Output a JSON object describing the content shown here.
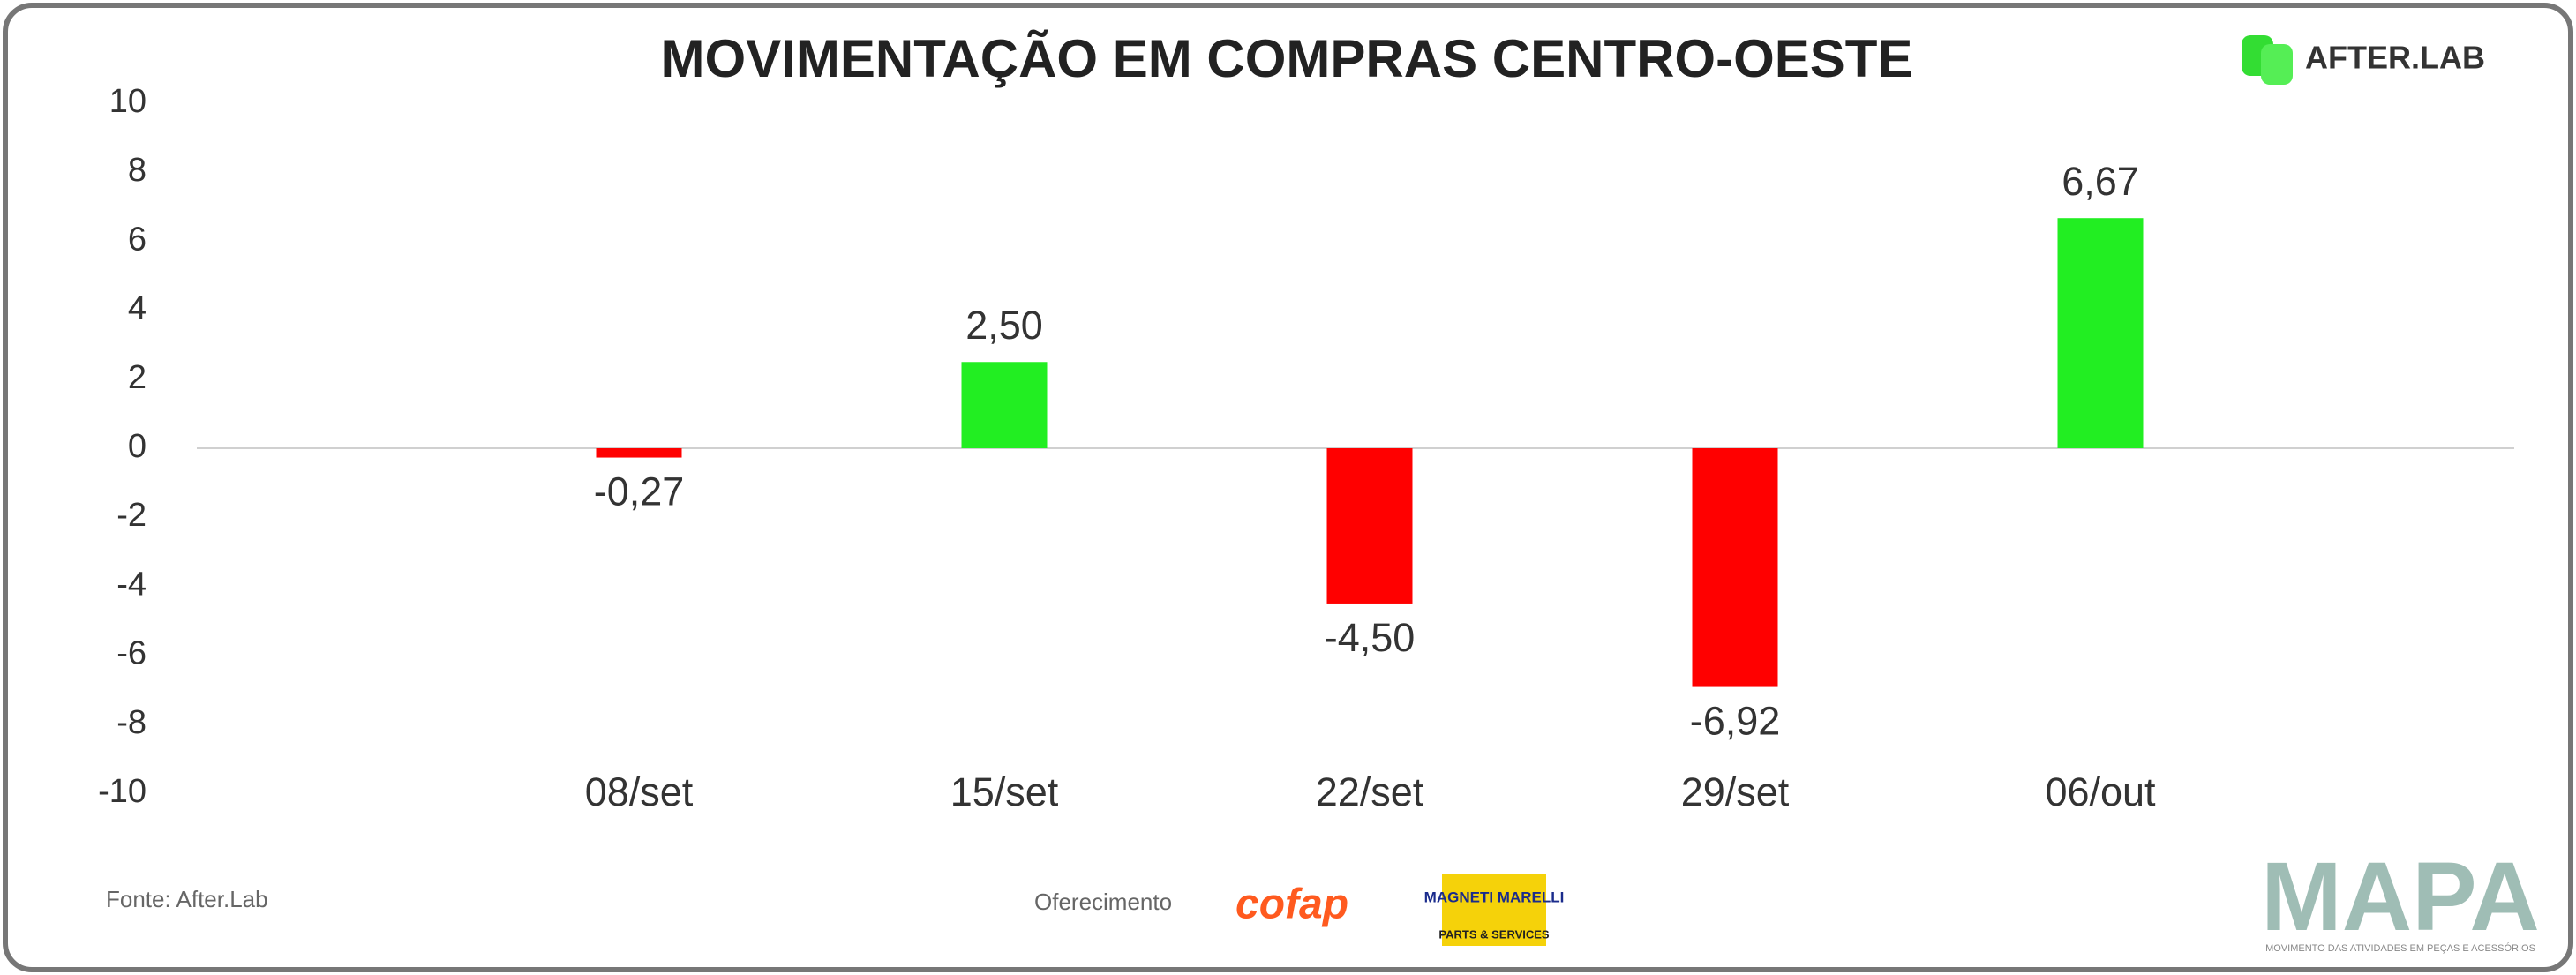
{
  "chart_data": {
    "type": "bar",
    "title": "MOVIMENTAÇÃO EM COMPRAS CENTRO-OESTE",
    "categories": [
      "08/set",
      "15/set",
      "22/set",
      "29/set",
      "06/out"
    ],
    "values": [
      -0.27,
      2.5,
      -4.5,
      -6.92,
      6.67
    ],
    "value_labels": [
      "-0,27",
      "2,50",
      "-4,50",
      "-6,92",
      "6,67"
    ],
    "colors": [
      "#ff0000",
      "#22ee22",
      "#ff0000",
      "#ff0000",
      "#22ee22"
    ],
    "ylim": [
      -10,
      10
    ],
    "yticks": [
      -10,
      -8,
      -6,
      -4,
      -2,
      0,
      2,
      4,
      6,
      8,
      10
    ],
    "grid": false
  },
  "brand": {
    "logo": "AFTER.LAB",
    "mapa": "MAPA",
    "mapa_tagline": "MOVIMENTO DAS ATIVIDADES EM PEÇAS E ACESSÓRIOS"
  },
  "footer": {
    "source": "Fonte: After.Lab",
    "sponsor": "Oferecimento",
    "cofap": "cofap",
    "magneti": "MAGNETI MARELLI",
    "magneti_sub": "PARTS & SERVICES"
  }
}
